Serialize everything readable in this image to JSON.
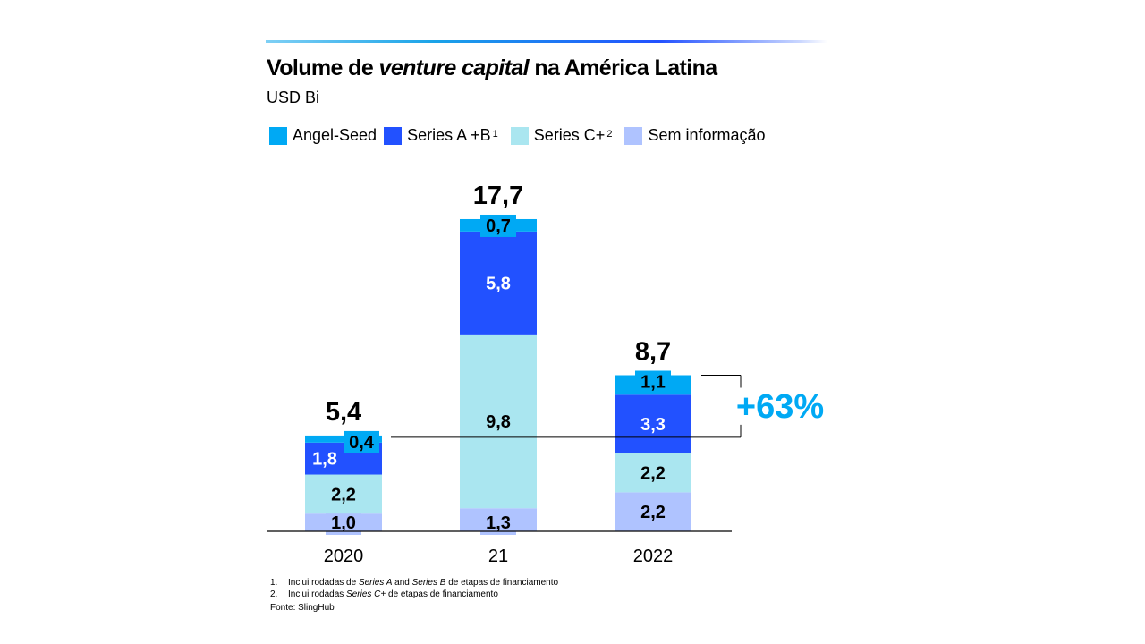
{
  "title": {
    "part1": "Volume de ",
    "part2_italic": "venture capital",
    "part3": " na América Latina"
  },
  "subtitle": "USD Bi",
  "legend": [
    {
      "label": "Angel-Seed",
      "sup": "",
      "color": "#00a9f4"
    },
    {
      "label": "Series A +B",
      "sup": "1",
      "color": "#2251ff"
    },
    {
      "label": "Series C+",
      "sup": "2",
      "color": "#aae6f0"
    },
    {
      "label": "Sem informação",
      "sup": "",
      "color": "#afc3ff"
    }
  ],
  "chart_data": {
    "type": "bar",
    "stacked": true,
    "title": "Volume de venture capital na América Latina",
    "ylabel": "USD Bi",
    "xlabel": "",
    "categories": [
      "2020",
      "21",
      "2022"
    ],
    "series": [
      {
        "name": "Sem informação",
        "color": "#afc3ff",
        "values": [
          1.0,
          1.3,
          2.2
        ],
        "labels": [
          "1,0",
          "1,3",
          "2,2"
        ],
        "label_color": "#000000"
      },
      {
        "name": "Series C+",
        "color": "#aae6f0",
        "values": [
          2.2,
          9.8,
          2.2
        ],
        "labels": [
          "2,2",
          "9,8",
          "2,2"
        ],
        "label_color": "#000000"
      },
      {
        "name": "Series A +B",
        "color": "#2251ff",
        "values": [
          1.8,
          5.8,
          3.3
        ],
        "labels": [
          "1,8",
          "5,8",
          "3,3"
        ],
        "label_color": "#ffffff"
      },
      {
        "name": "Angel-Seed",
        "color": "#00a9f4",
        "values": [
          0.4,
          0.7,
          1.1
        ],
        "labels": [
          "0,4",
          "0,7",
          "1,1"
        ],
        "label_color": "#000000"
      }
    ],
    "totals": [
      5.4,
      17.7,
      8.7
    ],
    "total_labels": [
      "5,4",
      "17,7",
      "8,7"
    ],
    "ylim": [
      0,
      17.7
    ],
    "grid": false,
    "legend_position": "top-left",
    "annotation": {
      "text": "+63%",
      "from": "2020",
      "to": "2022",
      "color": "#00a9f4"
    }
  },
  "footnotes": [
    {
      "num": "1.",
      "parts": [
        {
          "t": "Inclui rodadas de ",
          "i": false
        },
        {
          "t": "Series A",
          "i": true
        },
        {
          "t": " and ",
          "i": false
        },
        {
          "t": "Series B",
          "i": true
        },
        {
          "t": " de etapas de financiamento",
          "i": false
        }
      ]
    },
    {
      "num": "2.",
      "parts": [
        {
          "t": "Inclui rodadas ",
          "i": false
        },
        {
          "t": "Series C+",
          "i": true
        },
        {
          "t": " de etapas de financiamento",
          "i": false
        }
      ]
    }
  ],
  "source": "Fonte: SlingHub"
}
